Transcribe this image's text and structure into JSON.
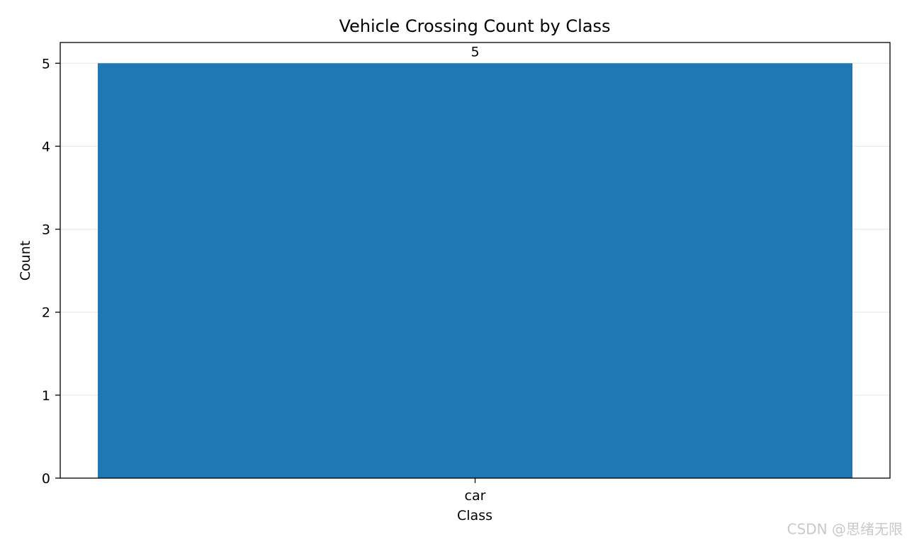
{
  "chart_data": {
    "type": "bar",
    "title": "Vehicle Crossing Count by Class",
    "xlabel": "Class",
    "ylabel": "Count",
    "categories": [
      "car"
    ],
    "values": [
      5
    ],
    "data_labels": [
      "5"
    ],
    "ylim": [
      0,
      5.25
    ],
    "yticks": [
      0,
      1,
      2,
      3,
      4,
      5
    ],
    "grid": "y",
    "bar_color": "#1f77b4"
  },
  "watermark": "CSDN @思绪无限"
}
